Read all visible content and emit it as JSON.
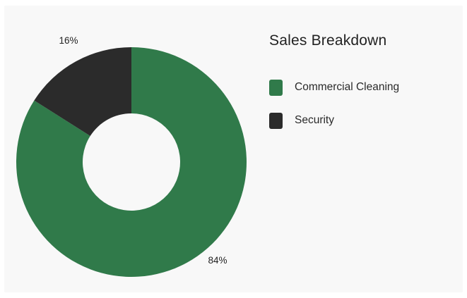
{
  "chart_data": {
    "type": "pie",
    "title": "Sales Breakdown",
    "donut": true,
    "legend_position": "right",
    "slices": [
      {
        "label": "Commercial Cleaning",
        "value": 84,
        "display": "84%",
        "color": "#307a4a"
      },
      {
        "label": "Security",
        "value": 16,
        "display": "16%",
        "color": "#2b2b2b"
      }
    ]
  }
}
